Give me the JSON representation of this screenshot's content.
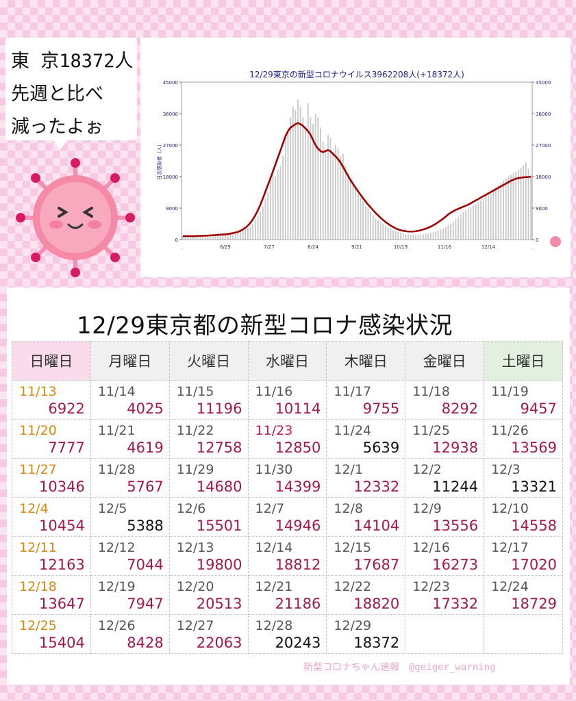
{
  "speech": {
    "lines": [
      "東 京18372人",
      "先週と比べ",
      "減ったよぉ"
    ]
  },
  "title": "12/29東京都の新型コロナ感染状況",
  "weekdays": [
    "日曜日",
    "月曜日",
    "火曜日",
    "水曜日",
    "木曜日",
    "金曜日",
    "土曜日"
  ],
  "weeks": [
    [
      {
        "date": "11/13",
        "value": "6922"
      },
      {
        "date": "11/14",
        "value": "4025"
      },
      {
        "date": "11/15",
        "value": "11196"
      },
      {
        "date": "11/16",
        "value": "10114"
      },
      {
        "date": "11/17",
        "value": "9755"
      },
      {
        "date": "11/18",
        "value": "8292"
      },
      {
        "date": "11/19",
        "value": "9457"
      }
    ],
    [
      {
        "date": "11/20",
        "value": "7777"
      },
      {
        "date": "11/21",
        "value": "4619"
      },
      {
        "date": "11/22",
        "value": "12758"
      },
      {
        "date": "11/23",
        "value": "12850",
        "holiday": true
      },
      {
        "date": "11/24",
        "value": "5639",
        "low": true
      },
      {
        "date": "11/25",
        "value": "12938"
      },
      {
        "date": "11/26",
        "value": "13569"
      }
    ],
    [
      {
        "date": "11/27",
        "value": "10346"
      },
      {
        "date": "11/28",
        "value": "5767"
      },
      {
        "date": "11/29",
        "value": "14680"
      },
      {
        "date": "11/30",
        "value": "14399"
      },
      {
        "date": "12/1",
        "value": "12332"
      },
      {
        "date": "12/2",
        "value": "11244",
        "low": true
      },
      {
        "date": "12/3",
        "value": "13321",
        "low": true
      }
    ],
    [
      {
        "date": "12/4",
        "value": "10454"
      },
      {
        "date": "12/5",
        "value": "5388",
        "low": true
      },
      {
        "date": "12/6",
        "value": "15501"
      },
      {
        "date": "12/7",
        "value": "14946"
      },
      {
        "date": "12/8",
        "value": "14104"
      },
      {
        "date": "12/9",
        "value": "13556"
      },
      {
        "date": "12/10",
        "value": "14558"
      }
    ],
    [
      {
        "date": "12/11",
        "value": "12163"
      },
      {
        "date": "12/12",
        "value": "7044"
      },
      {
        "date": "12/13",
        "value": "19800"
      },
      {
        "date": "12/14",
        "value": "18812"
      },
      {
        "date": "12/15",
        "value": "17687"
      },
      {
        "date": "12/16",
        "value": "16273"
      },
      {
        "date": "12/17",
        "value": "17020"
      }
    ],
    [
      {
        "date": "12/18",
        "value": "13647"
      },
      {
        "date": "12/19",
        "value": "7947"
      },
      {
        "date": "12/20",
        "value": "20513"
      },
      {
        "date": "12/21",
        "value": "21186"
      },
      {
        "date": "12/22",
        "value": "18820"
      },
      {
        "date": "12/23",
        "value": "17332"
      },
      {
        "date": "12/24",
        "value": "18729"
      }
    ],
    [
      {
        "date": "12/25",
        "value": "15404"
      },
      {
        "date": "12/26",
        "value": "8428"
      },
      {
        "date": "12/27",
        "value": "22063"
      },
      {
        "date": "12/28",
        "value": "20243",
        "low": true
      },
      {
        "date": "12/29",
        "value": "18372",
        "low": true
      },
      {
        "date": "",
        "value": ""
      },
      {
        "date": "",
        "value": ""
      }
    ]
  ],
  "credit": "新型コロナちゃん速報　@geiger_warning",
  "colors": {
    "bar": "#c8c8c8",
    "line": "#a00000",
    "accent": "#c2185b",
    "sunday": "#d38a12",
    "axis": "#1a237e"
  },
  "mascot_icon": "coronavirus-mascot-icon",
  "chart_data": {
    "type": "bar",
    "title": "12/29東京の新型コロナウイルス3962208人(+18372人)",
    "ylabel": "日次感染者（人）",
    "ylim": [
      0,
      45000
    ],
    "yticks": [
      0,
      9000,
      18000,
      27000,
      36000,
      45000
    ],
    "xticklabels": [
      ".",
      "6/29",
      "7/27",
      "8/24",
      "9/21",
      "10/19",
      "11/16",
      "12/14",
      "."
    ],
    "series": [
      {
        "kind": "bars",
        "values": [
          1000,
          1000,
          1000,
          1000,
          900,
          1100,
          1100,
          900,
          1200,
          1000,
          1300,
          1100,
          1200,
          1100,
          1400,
          1300,
          1500,
          1400,
          1600,
          1500,
          1800,
          1700,
          2000,
          2300,
          2600,
          3000,
          3400,
          3800,
          4500,
          5500,
          6500,
          8000,
          9500,
          11500,
          13500,
          16500,
          18500,
          18000,
          20000,
          21000,
          24000,
          30000,
          31000,
          35000,
          38000,
          37000,
          40000,
          38000,
          35000,
          32000,
          39000,
          35000,
          33000,
          36000,
          35000,
          32000,
          28000,
          26000,
          30000,
          29000,
          25000,
          27000,
          26000,
          24000,
          24500,
          21000,
          19000,
          17000,
          16000,
          14500,
          13000,
          12000,
          11000,
          9500,
          9000,
          8000,
          7000,
          6000,
          5500,
          5000,
          4500,
          4000,
          3500,
          3200,
          2800,
          2500,
          2200,
          2000,
          1800,
          1600,
          1500,
          1400,
          1400,
          1300,
          1300,
          1400,
          1500,
          1600,
          1700,
          1900,
          2100,
          2300,
          2600,
          2900,
          3200,
          3600,
          4100,
          4600,
          5200,
          5800,
          6500,
          7200,
          7900,
          8400,
          8900,
          9300,
          9700,
          10100,
          10600,
          11200,
          11800,
          12400,
          13000,
          13600,
          14200,
          14900,
          15500,
          16200,
          16900,
          17500,
          18100,
          18600,
          19000,
          19400,
          19800,
          20500,
          21200,
          22063,
          20243,
          18372
        ]
      },
      {
        "kind": "line",
        "name": "",
        "values": [
          1000,
          1000,
          1000,
          1000,
          1000,
          1000,
          1050,
          1050,
          1100,
          1100,
          1150,
          1200,
          1250,
          1300,
          1350,
          1400,
          1450,
          1500,
          1600,
          1700,
          1850,
          2000,
          2200,
          2500,
          2900,
          3400,
          4000,
          4800,
          5800,
          7000,
          8400,
          10000,
          11800,
          13700,
          15600,
          17500,
          19500,
          21500,
          23500,
          25500,
          27500,
          29500,
          31000,
          32000,
          32500,
          33000,
          33300,
          33000,
          32500,
          31800,
          31000,
          30000,
          28500,
          27000,
          26000,
          25300,
          25000,
          25300,
          25600,
          25200,
          24500,
          23800,
          23000,
          22000,
          20800,
          19500,
          18200,
          17000,
          15900,
          14800,
          13800,
          12800,
          11800,
          10900,
          10000,
          9200,
          8400,
          7600,
          6900,
          6200,
          5600,
          5000,
          4500,
          4000,
          3600,
          3200,
          2900,
          2700,
          2500,
          2400,
          2300,
          2300,
          2300,
          2400,
          2500,
          2700,
          2900,
          3100,
          3400,
          3700,
          4100,
          4500,
          5000,
          5500,
          6000,
          6600,
          7200,
          7700,
          8100,
          8500,
          8800,
          9100,
          9400,
          9700,
          10000,
          10400,
          10800,
          11200,
          11600,
          12000,
          12400,
          12800,
          13200,
          13600,
          14000,
          14400,
          14800,
          15200,
          15600,
          16000,
          16400,
          16800,
          17100,
          17400,
          17600,
          17700,
          17800,
          17850,
          17900,
          17950
        ]
      }
    ]
  }
}
